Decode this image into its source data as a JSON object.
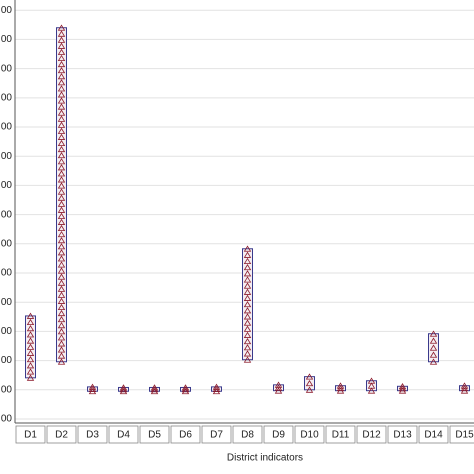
{
  "chart_data": {
    "type": "range",
    "x_label": "District indicators",
    "categories": [
      "D1",
      "D2",
      "D3",
      "D4",
      "D5",
      "D6",
      "D7",
      "D8",
      "D9",
      "D10",
      "D11",
      "D12",
      "D13",
      "D14",
      "D15"
    ],
    "series": [
      {
        "name": "max",
        "values": [
          253,
          1240,
          10,
          8,
          8,
          8,
          10,
          483,
          17,
          45,
          14,
          31,
          12,
          192,
          14
        ]
      },
      {
        "name": "min",
        "values": [
          41,
          96,
          -5,
          -5,
          -5,
          -5,
          -5,
          103,
          -3,
          0,
          -3,
          -3,
          -3,
          96,
          -3
        ]
      }
    ],
    "box_color": "#3a3a8c",
    "point_color": "#8b1a2b",
    "ylim": [
      -100,
      1335
    ],
    "yticks": [
      {
        "value": -100,
        "label": "00"
      },
      {
        "value": 0,
        "label": "00"
      },
      {
        "value": 100,
        "label": "00"
      },
      {
        "value": 200,
        "label": "00"
      },
      {
        "value": 300,
        "label": "00"
      },
      {
        "value": 400,
        "label": "00"
      },
      {
        "value": 500,
        "label": "00"
      },
      {
        "value": 600,
        "label": "00"
      },
      {
        "value": 700,
        "label": "00"
      },
      {
        "value": 800,
        "label": "00"
      },
      {
        "value": 900,
        "label": "00"
      },
      {
        "value": 1000,
        "label": "00"
      },
      {
        "value": 1100,
        "label": "00"
      },
      {
        "value": 1200,
        "label": "00"
      },
      {
        "value": 1300,
        "label": "00"
      }
    ],
    "grid": true
  }
}
